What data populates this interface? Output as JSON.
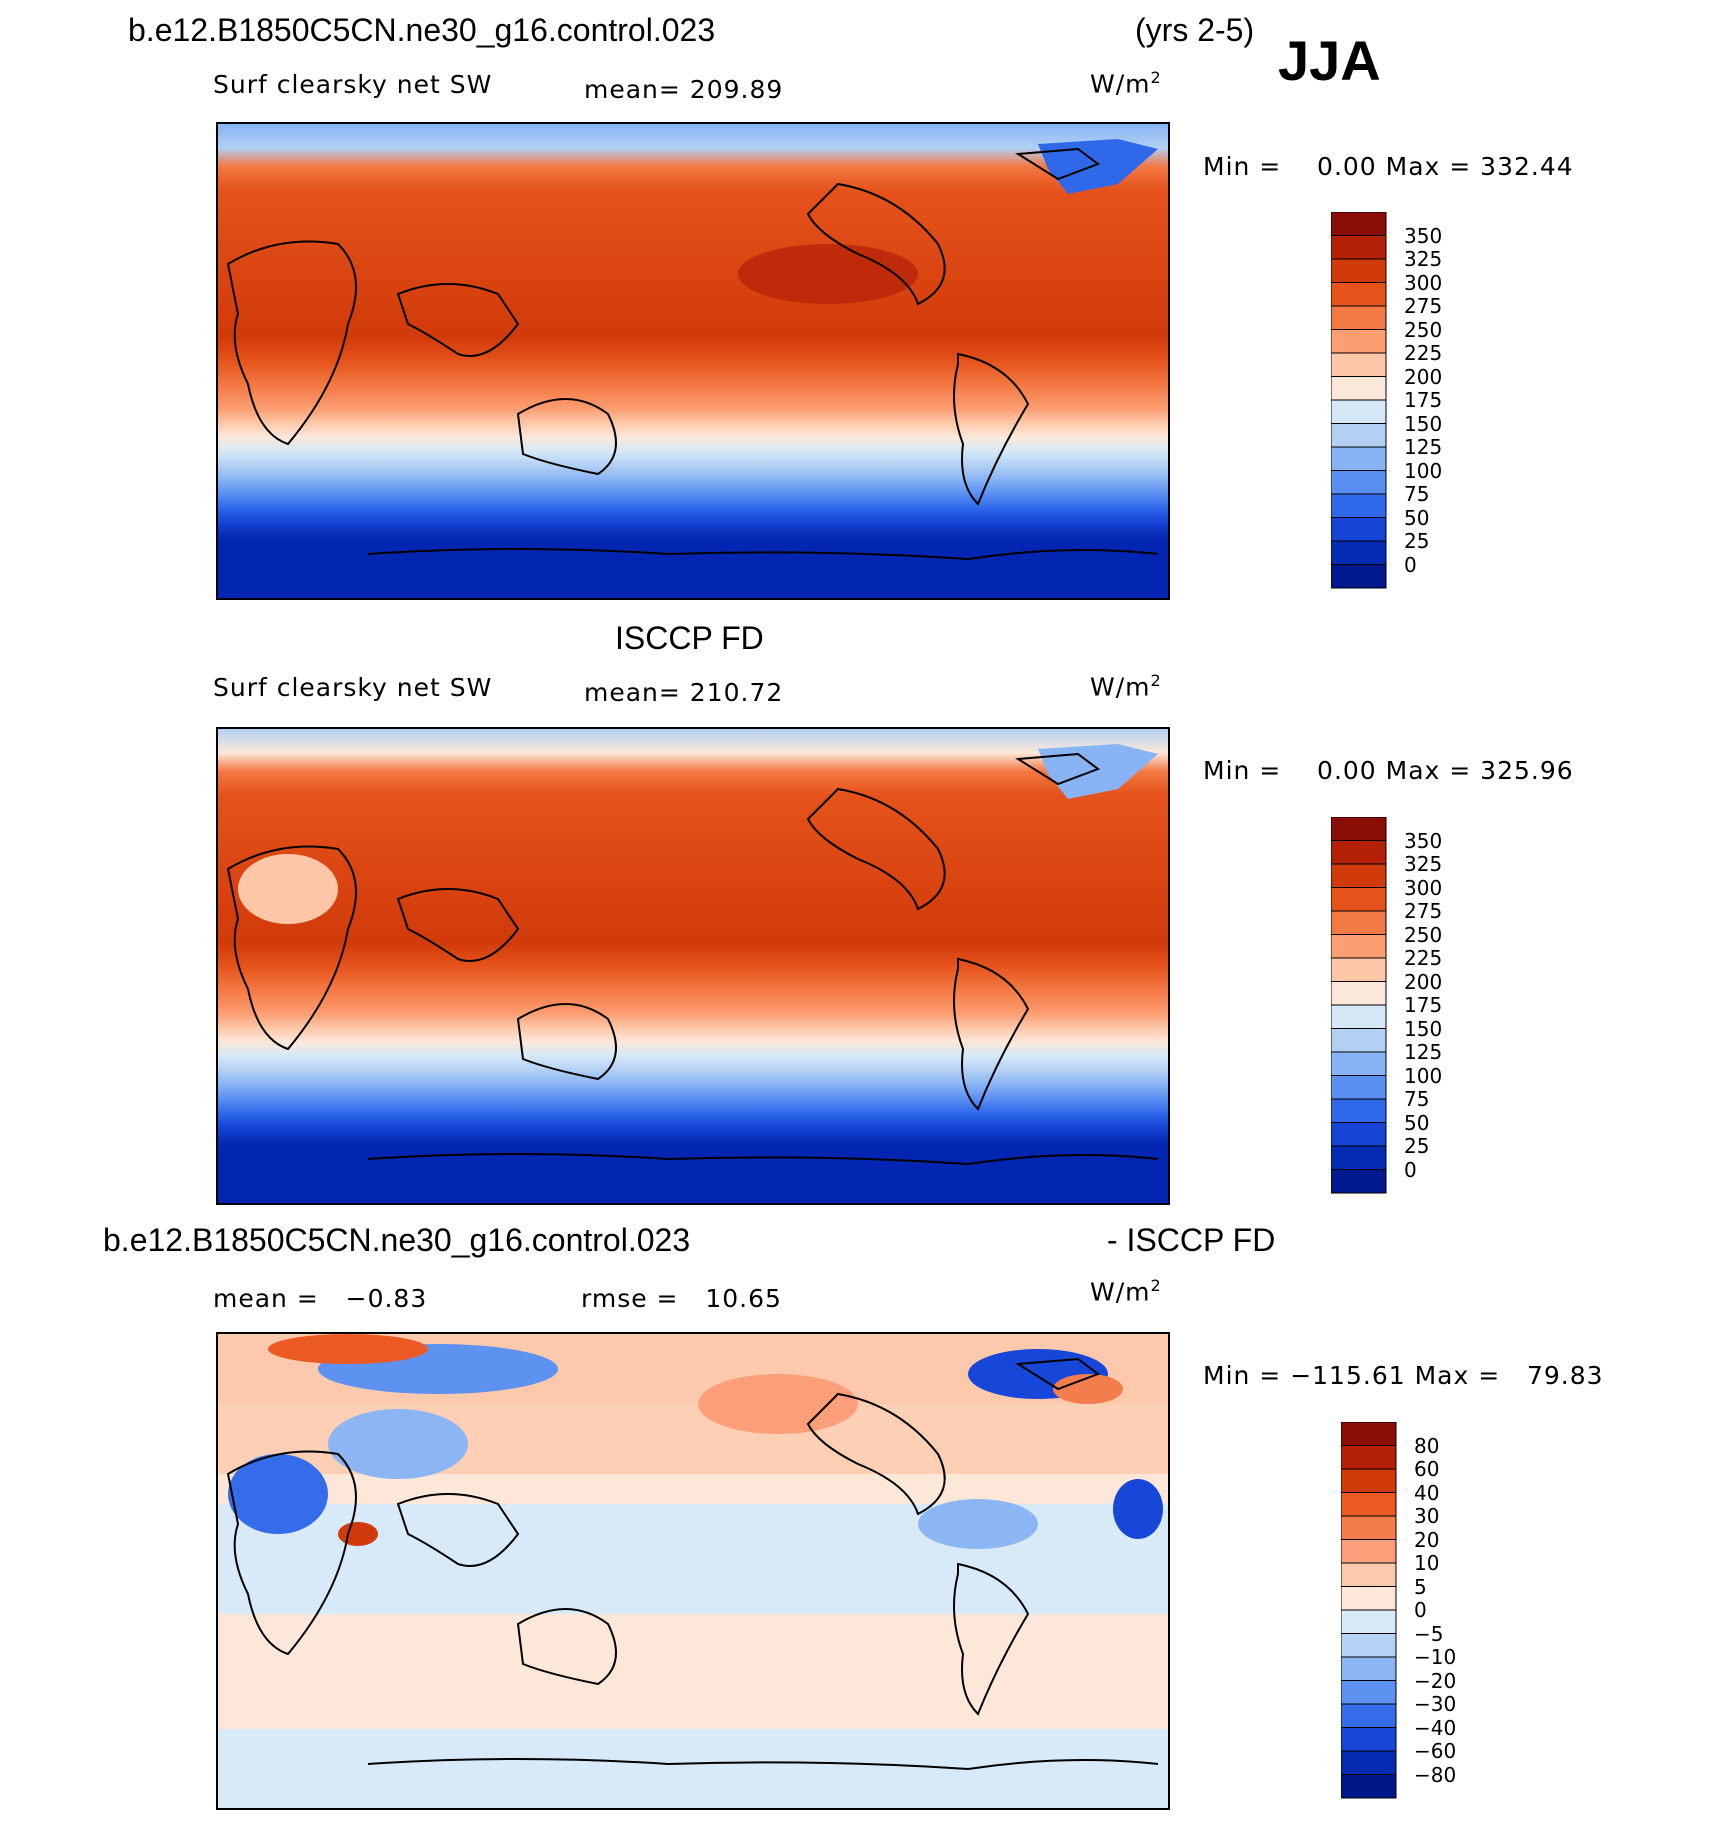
{
  "header": {
    "case_name": "b.e12.B1850C5CN.ne30_g16.control.023",
    "years": "(yrs 2-5)",
    "season": "JJA"
  },
  "panels": [
    {
      "title": "",
      "variable": "Surf clearsky net SW",
      "mean": "mean= 209.89",
      "units_base": "W/m",
      "units_exp": "2",
      "min_max": "Min =    0.00 Max = 332.44",
      "colorbar": {
        "ticks": [
          "350",
          "325",
          "300",
          "275",
          "250",
          "225",
          "200",
          "175",
          "150",
          "125",
          "100",
          "75",
          "50",
          "25",
          "0"
        ],
        "colors": [
          "#8b0d08",
          "#b52108",
          "#d13a0a",
          "#e5531b",
          "#f37843",
          "#fc9d72",
          "#fdc7a8",
          "#fce8d9",
          "#d6e8f7",
          "#b2d0f4",
          "#88b3f5",
          "#5a8ff2",
          "#2f69ea",
          "#1544d6",
          "#062bb3",
          "#01198f"
        ]
      }
    },
    {
      "title": "ISCCP FD",
      "variable": "Surf clearsky net SW",
      "mean": "mean= 210.72",
      "units_base": "W/m",
      "units_exp": "2",
      "min_max": "Min =    0.00 Max = 325.96",
      "colorbar": {
        "ticks": [
          "350",
          "325",
          "300",
          "275",
          "250",
          "225",
          "200",
          "175",
          "150",
          "125",
          "100",
          "75",
          "50",
          "25",
          "0"
        ],
        "colors": [
          "#8b0d08",
          "#b52108",
          "#d13a0a",
          "#e5531b",
          "#f37843",
          "#fc9d72",
          "#fdc7a8",
          "#fce8d9",
          "#d6e8f7",
          "#b2d0f4",
          "#88b3f5",
          "#5a8ff2",
          "#2f69ea",
          "#1544d6",
          "#062bb3",
          "#01198f"
        ]
      }
    },
    {
      "title_left": "b.e12.B1850C5CN.ne30_g16.control.023",
      "title_right": "- ISCCP FD",
      "mean": "mean =   −0.83",
      "rmse": "rmse =   10.65",
      "units_base": "W/m",
      "units_exp": "2",
      "min_max": "Min = −115.61 Max =   79.83",
      "colorbar": {
        "ticks": [
          "80",
          "60",
          "40",
          "30",
          "20",
          "10",
          "5",
          "0",
          "−5",
          "−10",
          "−20",
          "−30",
          "−40",
          "−60",
          "−80"
        ],
        "colors": [
          "#8b0d08",
          "#b52108",
          "#d13a0a",
          "#ec5a23",
          "#f47d4d",
          "#fb9f7a",
          "#fdc9ad",
          "#fde7d8",
          "#d8e9f8",
          "#b6d2f5",
          "#8cb5f4",
          "#5e92f1",
          "#346cea",
          "#1747d8",
          "#062ab2",
          "#02168a"
        ]
      }
    }
  ]
}
